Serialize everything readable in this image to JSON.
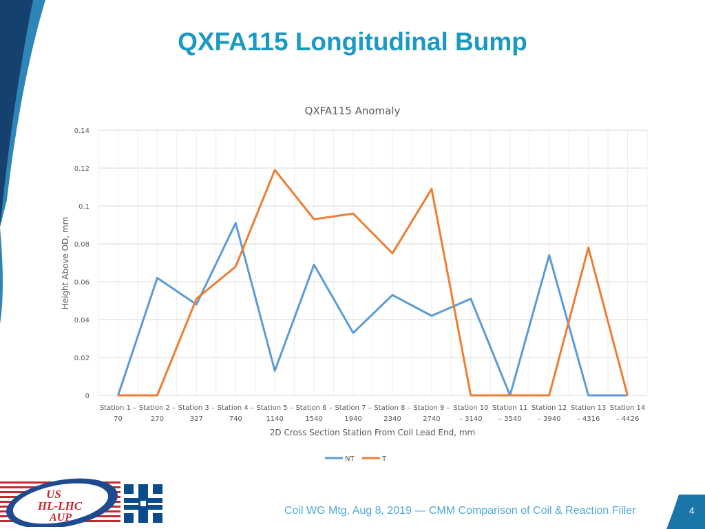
{
  "slide": {
    "title": "QXFA115 Longitudinal Bump",
    "footer": "Coil WG Mtg, Aug 8, 2019 — CMM Comparison of Coil & Reaction Filler",
    "page_number": "4",
    "logo_text_lines": [
      "US",
      "HL-LHC",
      "AUP"
    ]
  },
  "colors": {
    "title": "#1a99c2",
    "series_nt": "#5b9bd5",
    "series_t": "#ed7d31",
    "footer": "#4fa9d6"
  },
  "chart_data": {
    "type": "line",
    "title": "QXFA115 Anomaly",
    "xlabel": "2D Cross Section Station From Coil Lead End, mm",
    "ylabel": "Height Above OD, mm",
    "ylim": [
      0,
      0.14
    ],
    "yticks": [
      "0",
      "0.02",
      "0.04",
      "0.06",
      "0.08",
      "0.1",
      "0.12",
      "0.14"
    ],
    "categories": [
      [
        "Station 1 –",
        "70"
      ],
      [
        "Station 2 –",
        "270"
      ],
      [
        "Station 3 –",
        "327"
      ],
      [
        "Station 4 –",
        "740"
      ],
      [
        "Station 5 –",
        "1140"
      ],
      [
        "Station 6 –",
        "1540"
      ],
      [
        "Station 7 –",
        "1940"
      ],
      [
        "Station 8 –",
        "2340"
      ],
      [
        "Station 9 –",
        "2740"
      ],
      [
        "Station 10",
        "– 3140"
      ],
      [
        "Station 11",
        "– 3540"
      ],
      [
        "Station 12",
        "– 3940"
      ],
      [
        "Station 13",
        "– 4316"
      ],
      [
        "Station 14",
        "– 4426"
      ]
    ],
    "series": [
      {
        "name": "NT",
        "color": "#5b9bd5",
        "values": [
          0,
          0.062,
          0.048,
          0.091,
          0.013,
          0.069,
          0.033,
          0.053,
          0.042,
          0.051,
          0,
          0.074,
          0,
          0
        ]
      },
      {
        "name": "T",
        "color": "#ed7d31",
        "values": [
          0,
          0,
          0.051,
          0.068,
          0.119,
          0.093,
          0.096,
          0.075,
          0.109,
          0,
          0,
          0,
          0.078,
          0
        ]
      }
    ],
    "grid": true,
    "legend": "bottom"
  }
}
